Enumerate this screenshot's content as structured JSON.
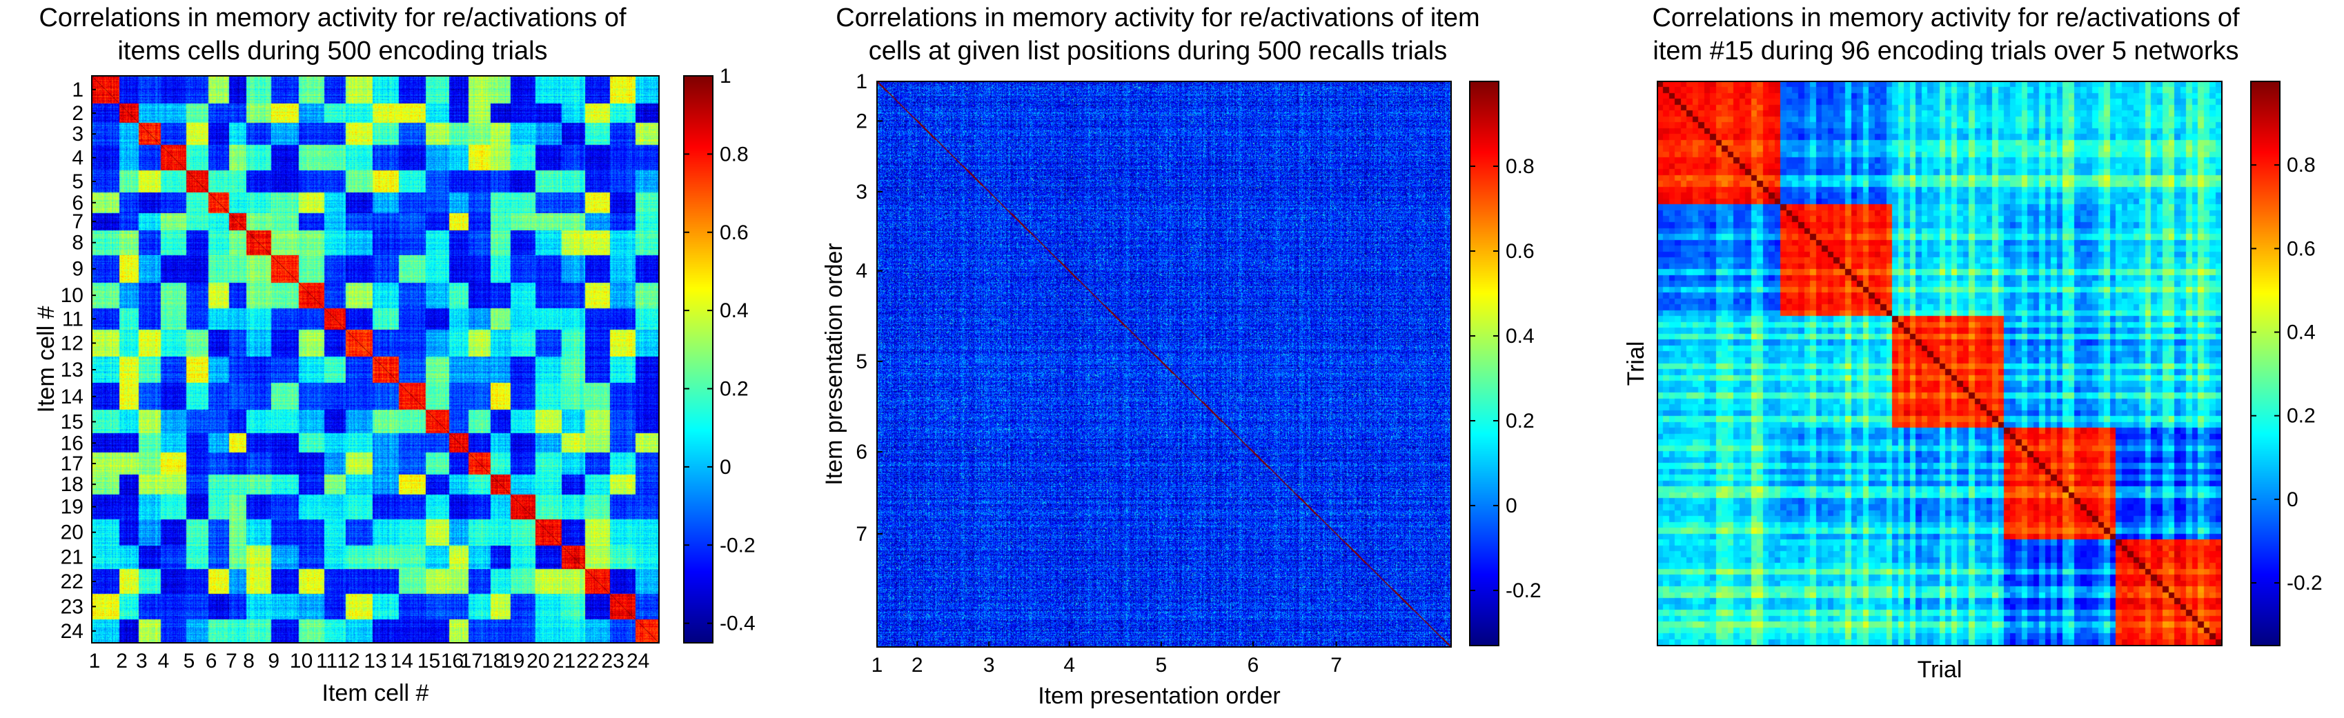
{
  "colormap": "jet",
  "colormap_stops": [
    "#00008F",
    "#0000FF",
    "#00FFFF",
    "#FFFF00",
    "#FF0000",
    "#800000"
  ],
  "chart_data": [
    {
      "type": "heatmap",
      "title_lines": [
        "Correlations in memory activity for re/activations of",
        "items cells during 500 encoding trials"
      ],
      "xlabel": "Item cell #",
      "ylabel": "Item cell #",
      "x_ticks": [
        "1",
        "2",
        "3",
        "4",
        "5",
        "6",
        "7",
        "8",
        "9",
        "10",
        "11",
        "12",
        "13",
        "14",
        "15",
        "16",
        "17",
        "18",
        "19",
        "20",
        "21",
        "22",
        "23",
        "24"
      ],
      "y_ticks": [
        "1",
        "2",
        "3",
        "4",
        "5",
        "6",
        "7",
        "8",
        "9",
        "10",
        "11",
        "12",
        "13",
        "14",
        "15",
        "16",
        "17",
        "18",
        "19",
        "20",
        "21",
        "22",
        "23",
        "24"
      ],
      "n_blocks": 24,
      "colorbar": {
        "ticks": [
          1,
          0.8,
          0.6,
          0.4,
          0.2,
          0,
          -0.2,
          -0.4
        ],
        "labels": [
          "1",
          "0.8",
          "0.6",
          "0.4",
          "0.2",
          "0",
          "-0.2",
          "-0.4"
        ],
        "range": [
          -0.45,
          1.0
        ]
      },
      "value_range": [
        -0.45,
        1.0
      ],
      "diagonal_block_value": 0.85,
      "off_diagonal_value_range": [
        -0.3,
        0.45
      ],
      "grid": false
    },
    {
      "type": "heatmap",
      "title_lines": [
        "Correlations in memory activity for re/activations of item",
        "cells at given list positions during 500 recalls trials"
      ],
      "xlabel": "Item presentation order",
      "ylabel": "Item presentation order",
      "x_ticks": [
        "1",
        "2",
        "3",
        "4",
        "5",
        "6",
        "7"
      ],
      "y_ticks": [
        "1",
        "2",
        "3",
        "4",
        "5",
        "6",
        "7"
      ],
      "tick_positions_fraction": [
        0.0,
        0.07,
        0.195,
        0.335,
        0.495,
        0.655,
        0.8
      ],
      "colorbar": {
        "ticks": [
          0.8,
          0.6,
          0.4,
          0.2,
          0,
          -0.2
        ],
        "labels": [
          "0.8",
          "0.6",
          "0.4",
          "0.2",
          "0",
          "-0.2"
        ],
        "range": [
          -0.33,
          1.0
        ]
      },
      "value_range": [
        -0.33,
        1.0
      ],
      "dominant_value_range": [
        -0.28,
        0.05
      ],
      "grid": false
    },
    {
      "type": "heatmap",
      "title_lines": [
        "Correlations in memory activity for re/activations of",
        "item #15 during 96 encoding trials over 5 networks"
      ],
      "xlabel": "Trial",
      "ylabel": "Trial",
      "n_trials": 96,
      "n_networks": 5,
      "x_ticks": [],
      "y_ticks": [],
      "colorbar": {
        "ticks": [
          0.8,
          0.6,
          0.4,
          0.2,
          0,
          -0.2
        ],
        "labels": [
          "0.8",
          "0.6",
          "0.4",
          "0.2",
          "0",
          "-0.2"
        ],
        "range": [
          -0.35,
          1.0
        ]
      },
      "value_range": [
        -0.35,
        1.0
      ],
      "diagonal_block_value": 0.9,
      "off_diagonal_value_range": [
        -0.3,
        0.3
      ],
      "grid": false
    }
  ]
}
